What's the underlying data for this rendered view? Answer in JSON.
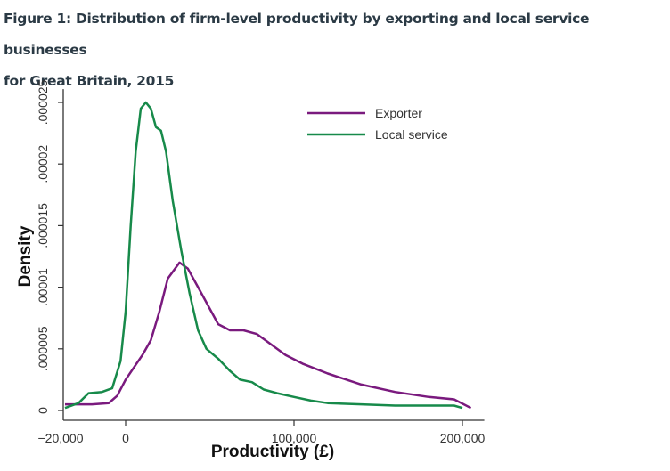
{
  "chart_data": {
    "type": "line",
    "title": "Figure 1: Distribution of firm-level productivity by exporting and local service businesses",
    "title_line2": "for Great Britain, 2015",
    "xlabel": "Productivity (£)",
    "ylabel": "Density",
    "xlim": [
      -37000,
      213000
    ],
    "ylim": [
      0,
      2.55e-05
    ],
    "x_ticks": [
      {
        "v": -20000,
        "label": "−20,000"
      },
      {
        "v": 0,
        "label": "0"
      },
      {
        "v": 100000,
        "label": "100,000"
      },
      {
        "v": 200000,
        "label": "200,000"
      }
    ],
    "y_ticks": [
      {
        "v": 0,
        "label": "0"
      },
      {
        "v": 5e-06,
        "label": ".000005"
      },
      {
        "v": 1e-05,
        "label": ".00001"
      },
      {
        "v": 1.5e-05,
        "label": ".000015"
      },
      {
        "v": 2e-05,
        "label": ".00002"
      },
      {
        "v": 2.5e-05,
        "label": ".000025"
      }
    ],
    "legend_position": "top-right",
    "grid": false,
    "series": [
      {
        "name": "Exporter",
        "color": "#7a1a7e",
        "points": [
          [
            -36000,
            5e-07
          ],
          [
            -20000,
            5e-07
          ],
          [
            -10000,
            6e-07
          ],
          [
            -5000,
            1.2e-06
          ],
          [
            0,
            2.5e-06
          ],
          [
            5000,
            3.5e-06
          ],
          [
            10000,
            4.5e-06
          ],
          [
            15000,
            5.7e-06
          ],
          [
            20000,
            8e-06
          ],
          [
            25000,
            1.07e-05
          ],
          [
            32000,
            1.2e-05
          ],
          [
            37000,
            1.15e-05
          ],
          [
            45000,
            9.5e-06
          ],
          [
            55000,
            7e-06
          ],
          [
            62000,
            6.5e-06
          ],
          [
            70000,
            6.5e-06
          ],
          [
            78000,
            6.2e-06
          ],
          [
            85000,
            5.5e-06
          ],
          [
            95000,
            4.5e-06
          ],
          [
            105000,
            3.8e-06
          ],
          [
            120000,
            3e-06
          ],
          [
            140000,
            2.1e-06
          ],
          [
            160000,
            1.5e-06
          ],
          [
            180000,
            1.1e-06
          ],
          [
            195000,
            9e-07
          ],
          [
            205000,
            2e-07
          ]
        ]
      },
      {
        "name": "Local service",
        "color": "#178a4a",
        "points": [
          [
            -36000,
            2e-07
          ],
          [
            -28000,
            6e-07
          ],
          [
            -22000,
            1.4e-06
          ],
          [
            -14000,
            1.5e-06
          ],
          [
            -8000,
            1.8e-06
          ],
          [
            -3000,
            4e-06
          ],
          [
            0,
            8e-06
          ],
          [
            3000,
            1.5e-05
          ],
          [
            6000,
            2.1e-05
          ],
          [
            9000,
            2.45e-05
          ],
          [
            12000,
            2.5e-05
          ],
          [
            15000,
            2.45e-05
          ],
          [
            18000,
            2.3e-05
          ],
          [
            21000,
            2.27e-05
          ],
          [
            24000,
            2.1e-05
          ],
          [
            28000,
            1.7e-05
          ],
          [
            33000,
            1.3e-05
          ],
          [
            38000,
            9.5e-06
          ],
          [
            43000,
            6.5e-06
          ],
          [
            48000,
            5e-06
          ],
          [
            55000,
            4.2e-06
          ],
          [
            62000,
            3.2e-06
          ],
          [
            68000,
            2.5e-06
          ],
          [
            75000,
            2.3e-06
          ],
          [
            82000,
            1.7e-06
          ],
          [
            90000,
            1.4e-06
          ],
          [
            100000,
            1.1e-06
          ],
          [
            110000,
            8e-07
          ],
          [
            120000,
            6e-07
          ],
          [
            140000,
            5e-07
          ],
          [
            160000,
            4e-07
          ],
          [
            180000,
            4e-07
          ],
          [
            195000,
            4e-07
          ],
          [
            200000,
            2e-07
          ]
        ]
      }
    ]
  }
}
